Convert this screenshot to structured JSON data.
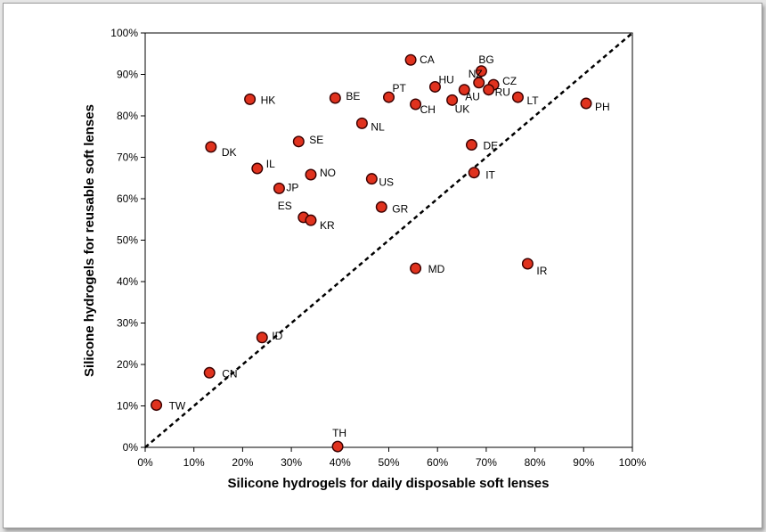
{
  "chart_data": {
    "type": "scatter",
    "xlabel": "Silicone hydrogels for daily disposable soft lenses",
    "ylabel": "Silicone hydrogels for reusable soft lenses",
    "xlim": [
      0,
      100
    ],
    "ylim": [
      0,
      100
    ],
    "xticks": [
      "0%",
      "10%",
      "20%",
      "30%",
      "40%",
      "50%",
      "60%",
      "70%",
      "80%",
      "90%",
      "100%"
    ],
    "yticks": [
      "0%",
      "10%",
      "20%",
      "30%",
      "40%",
      "50%",
      "60%",
      "70%",
      "80%",
      "90%",
      "100%"
    ],
    "grid": false,
    "reference_line": "diagonal y = x (dashed)",
    "marker_color": "#e0321e",
    "points": [
      {
        "label": "CA",
        "x": 54.5,
        "y": 93.5
      },
      {
        "label": "BG",
        "x": 69,
        "y": 90.8
      },
      {
        "label": "NZ",
        "x": 68.5,
        "y": 88
      },
      {
        "label": "CZ",
        "x": 71.5,
        "y": 87.5
      },
      {
        "label": "HU",
        "x": 59.5,
        "y": 87
      },
      {
        "label": "RU",
        "x": 70.5,
        "y": 86.3
      },
      {
        "label": "AU",
        "x": 65.5,
        "y": 86.3
      },
      {
        "label": "PT",
        "x": 50,
        "y": 84.5
      },
      {
        "label": "LT",
        "x": 76.5,
        "y": 84.5
      },
      {
        "label": "HK",
        "x": 21.5,
        "y": 84
      },
      {
        "label": "BE",
        "x": 39,
        "y": 84.3
      },
      {
        "label": "UK",
        "x": 63,
        "y": 83.8
      },
      {
        "label": "PH",
        "x": 90.5,
        "y": 83
      },
      {
        "label": "CH",
        "x": 55.5,
        "y": 82.8
      },
      {
        "label": "NL",
        "x": 44.5,
        "y": 78.2
      },
      {
        "label": "SE",
        "x": 31.5,
        "y": 73.8
      },
      {
        "label": "DE",
        "x": 67,
        "y": 73
      },
      {
        "label": "DK",
        "x": 13.5,
        "y": 72.5
      },
      {
        "label": "IL",
        "x": 23,
        "y": 67.3
      },
      {
        "label": "IT",
        "x": 67.5,
        "y": 66.3
      },
      {
        "label": "NO",
        "x": 34,
        "y": 65.8
      },
      {
        "label": "US",
        "x": 46.5,
        "y": 64.8
      },
      {
        "label": "JP",
        "x": 27.5,
        "y": 62.5
      },
      {
        "label": "GR",
        "x": 48.5,
        "y": 58
      },
      {
        "label": "ES",
        "x": 32.5,
        "y": 55.5
      },
      {
        "label": "KR",
        "x": 34,
        "y": 54.8
      },
      {
        "label": "MD",
        "x": 55.5,
        "y": 43.2
      },
      {
        "label": "IR",
        "x": 78.5,
        "y": 44.3
      },
      {
        "label": "ID",
        "x": 24,
        "y": 26.5
      },
      {
        "label": "CN",
        "x": 13.2,
        "y": 18
      },
      {
        "label": "TW",
        "x": 2.3,
        "y": 10.2
      },
      {
        "label": "TH",
        "x": 39.5,
        "y": 0.2
      }
    ]
  }
}
